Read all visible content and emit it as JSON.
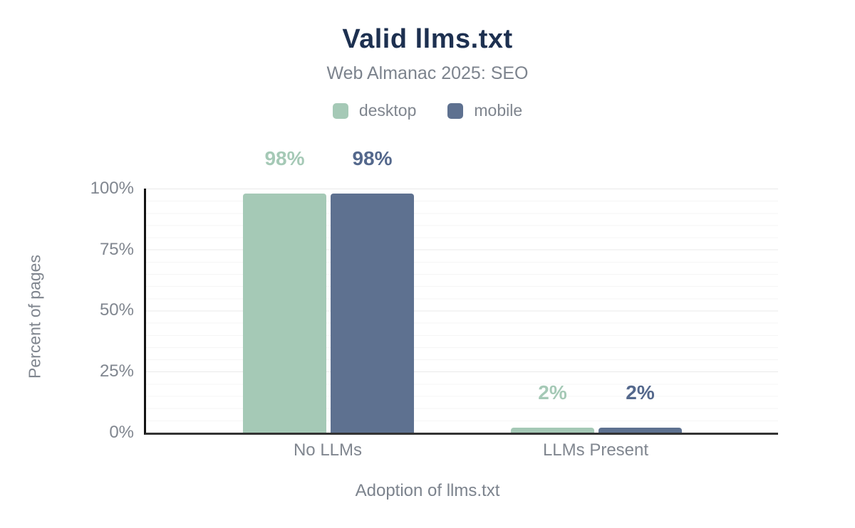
{
  "chart": {
    "title": "Valid llms.txt",
    "subtitle": "Web Almanac 2025: SEO",
    "x_axis_title": "Adoption of llms.txt",
    "y_axis_title": "Percent of pages"
  },
  "chart_data": {
    "type": "bar",
    "title": "Valid llms.txt",
    "subtitle": "Web Almanac 2025: SEO",
    "categories": [
      "No LLMs",
      "LLMs Present"
    ],
    "series": [
      {
        "name": "desktop",
        "values": [
          98,
          2
        ],
        "color": "#a5c9b6",
        "label_color": "#a5c9b6"
      },
      {
        "name": "mobile",
        "values": [
          98,
          2
        ],
        "color": "#5e7190",
        "label_color": "#54688c"
      }
    ],
    "value_label_format": "{value}%",
    "xlabel": "Adoption of llms.txt",
    "ylabel": "Percent of pages",
    "ylim": [
      0,
      100
    ],
    "y_tick_labels": [
      "100%",
      "75%",
      "50%",
      "25%",
      "0%"
    ],
    "grid": "horizontal, minor every 5%, major every 25%",
    "legend_position": "top-center"
  },
  "colors": {
    "title_text": "#1d3050",
    "muted_text": "#7f858e",
    "y_axis_line": "#141414",
    "x_axis_line": "#333333",
    "grid_minor": "#f5f5f5",
    "grid_major": "#e9e9e9",
    "background": "#ffffff"
  }
}
